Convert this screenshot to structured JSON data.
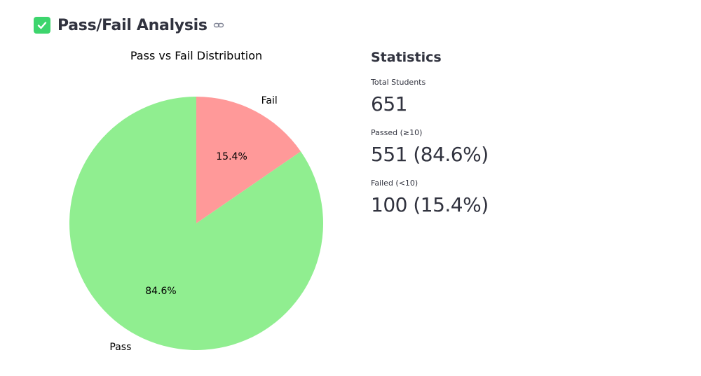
{
  "header": {
    "title": "Pass/Fail Analysis",
    "check_icon": "check-box-icon",
    "link_icon": "link-icon"
  },
  "chart_data": {
    "type": "pie",
    "title": "Pass vs Fail Distribution",
    "slices": [
      {
        "label": "Fail",
        "value": 15.4,
        "pct_label": "15.4%",
        "color": "#ff9999"
      },
      {
        "label": "Pass",
        "value": 84.6,
        "pct_label": "84.6%",
        "color": "#90ee90"
      }
    ],
    "start_angle_deg": 90,
    "direction": "clockwise"
  },
  "stats": {
    "title": "Statistics",
    "metrics": [
      {
        "label": "Total Students",
        "value": "651"
      },
      {
        "label": "Passed (≥10)",
        "value": "551 (84.6%)"
      },
      {
        "label": "Failed (<10)",
        "value": "100 (15.4%)"
      }
    ]
  }
}
